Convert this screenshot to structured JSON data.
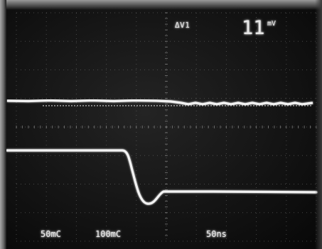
{
  "readouts": {
    "delta_label": "ΔV1",
    "value": "11",
    "unit": "mV",
    "ch1_scale": "50mC",
    "ch2_scale": "100mC",
    "time_scale": "50ns"
  },
  "colors": {
    "screen": "#141414",
    "trace": "#f2f2f2",
    "graticule": "#8a8a8a",
    "bezel": "#9a9a9a"
  }
}
